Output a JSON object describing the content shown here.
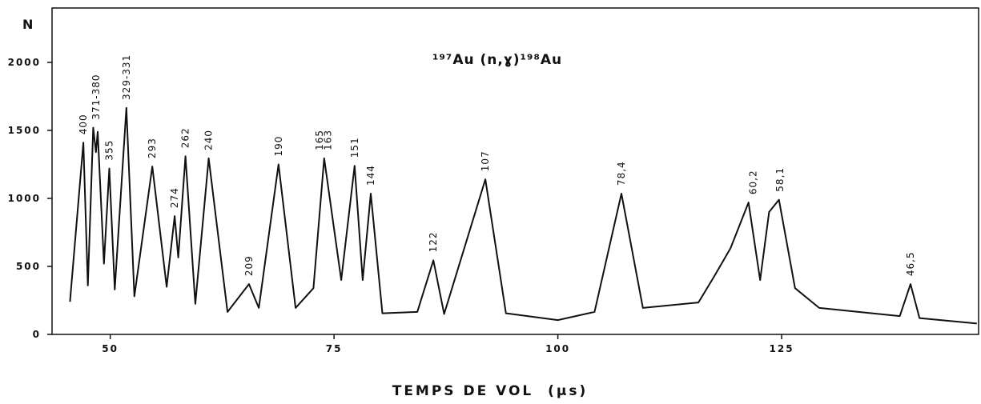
{
  "chart_data": {
    "type": "line",
    "title": "¹⁹⁷Au (n,ɣ)¹⁹⁸Au",
    "y_label": "N",
    "x_label": "TEMPS DE VOL  (µs)",
    "color": "#111111",
    "xlim": [
      43.5,
      147
    ],
    "ylim": [
      0,
      2400
    ],
    "xticks": [
      50,
      75,
      100,
      125
    ],
    "yticks": [
      0,
      500,
      1000,
      1500,
      2000
    ],
    "grid": false,
    "x": [
      45.5,
      47.0,
      47.5,
      48.1,
      48.4,
      48.6,
      49.3,
      49.9,
      50.5,
      51.8,
      52.7,
      54.7,
      56.3,
      57.2,
      57.6,
      58.4,
      59.5,
      61.0,
      63.1,
      65.5,
      66.6,
      68.8,
      70.7,
      72.7,
      73.9,
      75.8,
      77.3,
      78.2,
      79.1,
      80.4,
      84.3,
      86.1,
      87.3,
      91.9,
      94.2,
      100,
      104.1,
      107.1,
      109.5,
      115.7,
      117.5,
      119.3,
      121.3,
      122.6,
      123.6,
      124.7,
      126.5,
      129.2,
      138.2,
      139.4,
      140.4,
      146.8
    ],
    "values": [
      240,
      1410,
      360,
      1520,
      1340,
      1490,
      520,
      1220,
      330,
      1665,
      280,
      1235,
      350,
      870,
      565,
      1310,
      225,
      1295,
      165,
      370,
      195,
      1250,
      195,
      340,
      1295,
      400,
      1240,
      400,
      1035,
      155,
      165,
      545,
      150,
      1140,
      155,
      105,
      165,
      1035,
      195,
      235,
      430,
      635,
      970,
      400,
      900,
      990,
      340,
      195,
      135,
      370,
      120,
      80
    ],
    "annotations": [
      {
        "text": "400",
        "x": 47.0
      },
      {
        "text": "371-380",
        "x": 48.4
      },
      {
        "text": "355",
        "x": 49.9
      },
      {
        "text": "329-331",
        "x": 51.8
      },
      {
        "text": "293",
        "x": 54.7
      },
      {
        "text": "274",
        "x": 57.2
      },
      {
        "text": "262",
        "x": 58.4
      },
      {
        "text": "240",
        "x": 61.0
      },
      {
        "text": "209",
        "x": 65.5
      },
      {
        "text": "190",
        "x": 68.8
      },
      {
        "text": "165",
        "x": 73.4
      },
      {
        "text": "163",
        "x": 74.3
      },
      {
        "text": "151",
        "x": 77.3
      },
      {
        "text": "144",
        "x": 79.1
      },
      {
        "text": "122",
        "x": 86.1
      },
      {
        "text": "107",
        "x": 91.9
      },
      {
        "text": "78,4",
        "x": 107.1
      },
      {
        "text": "60,2",
        "x": 121.8
      },
      {
        "text": "58,1",
        "x": 124.8
      },
      {
        "text": "46,5",
        "x": 139.4
      }
    ]
  }
}
